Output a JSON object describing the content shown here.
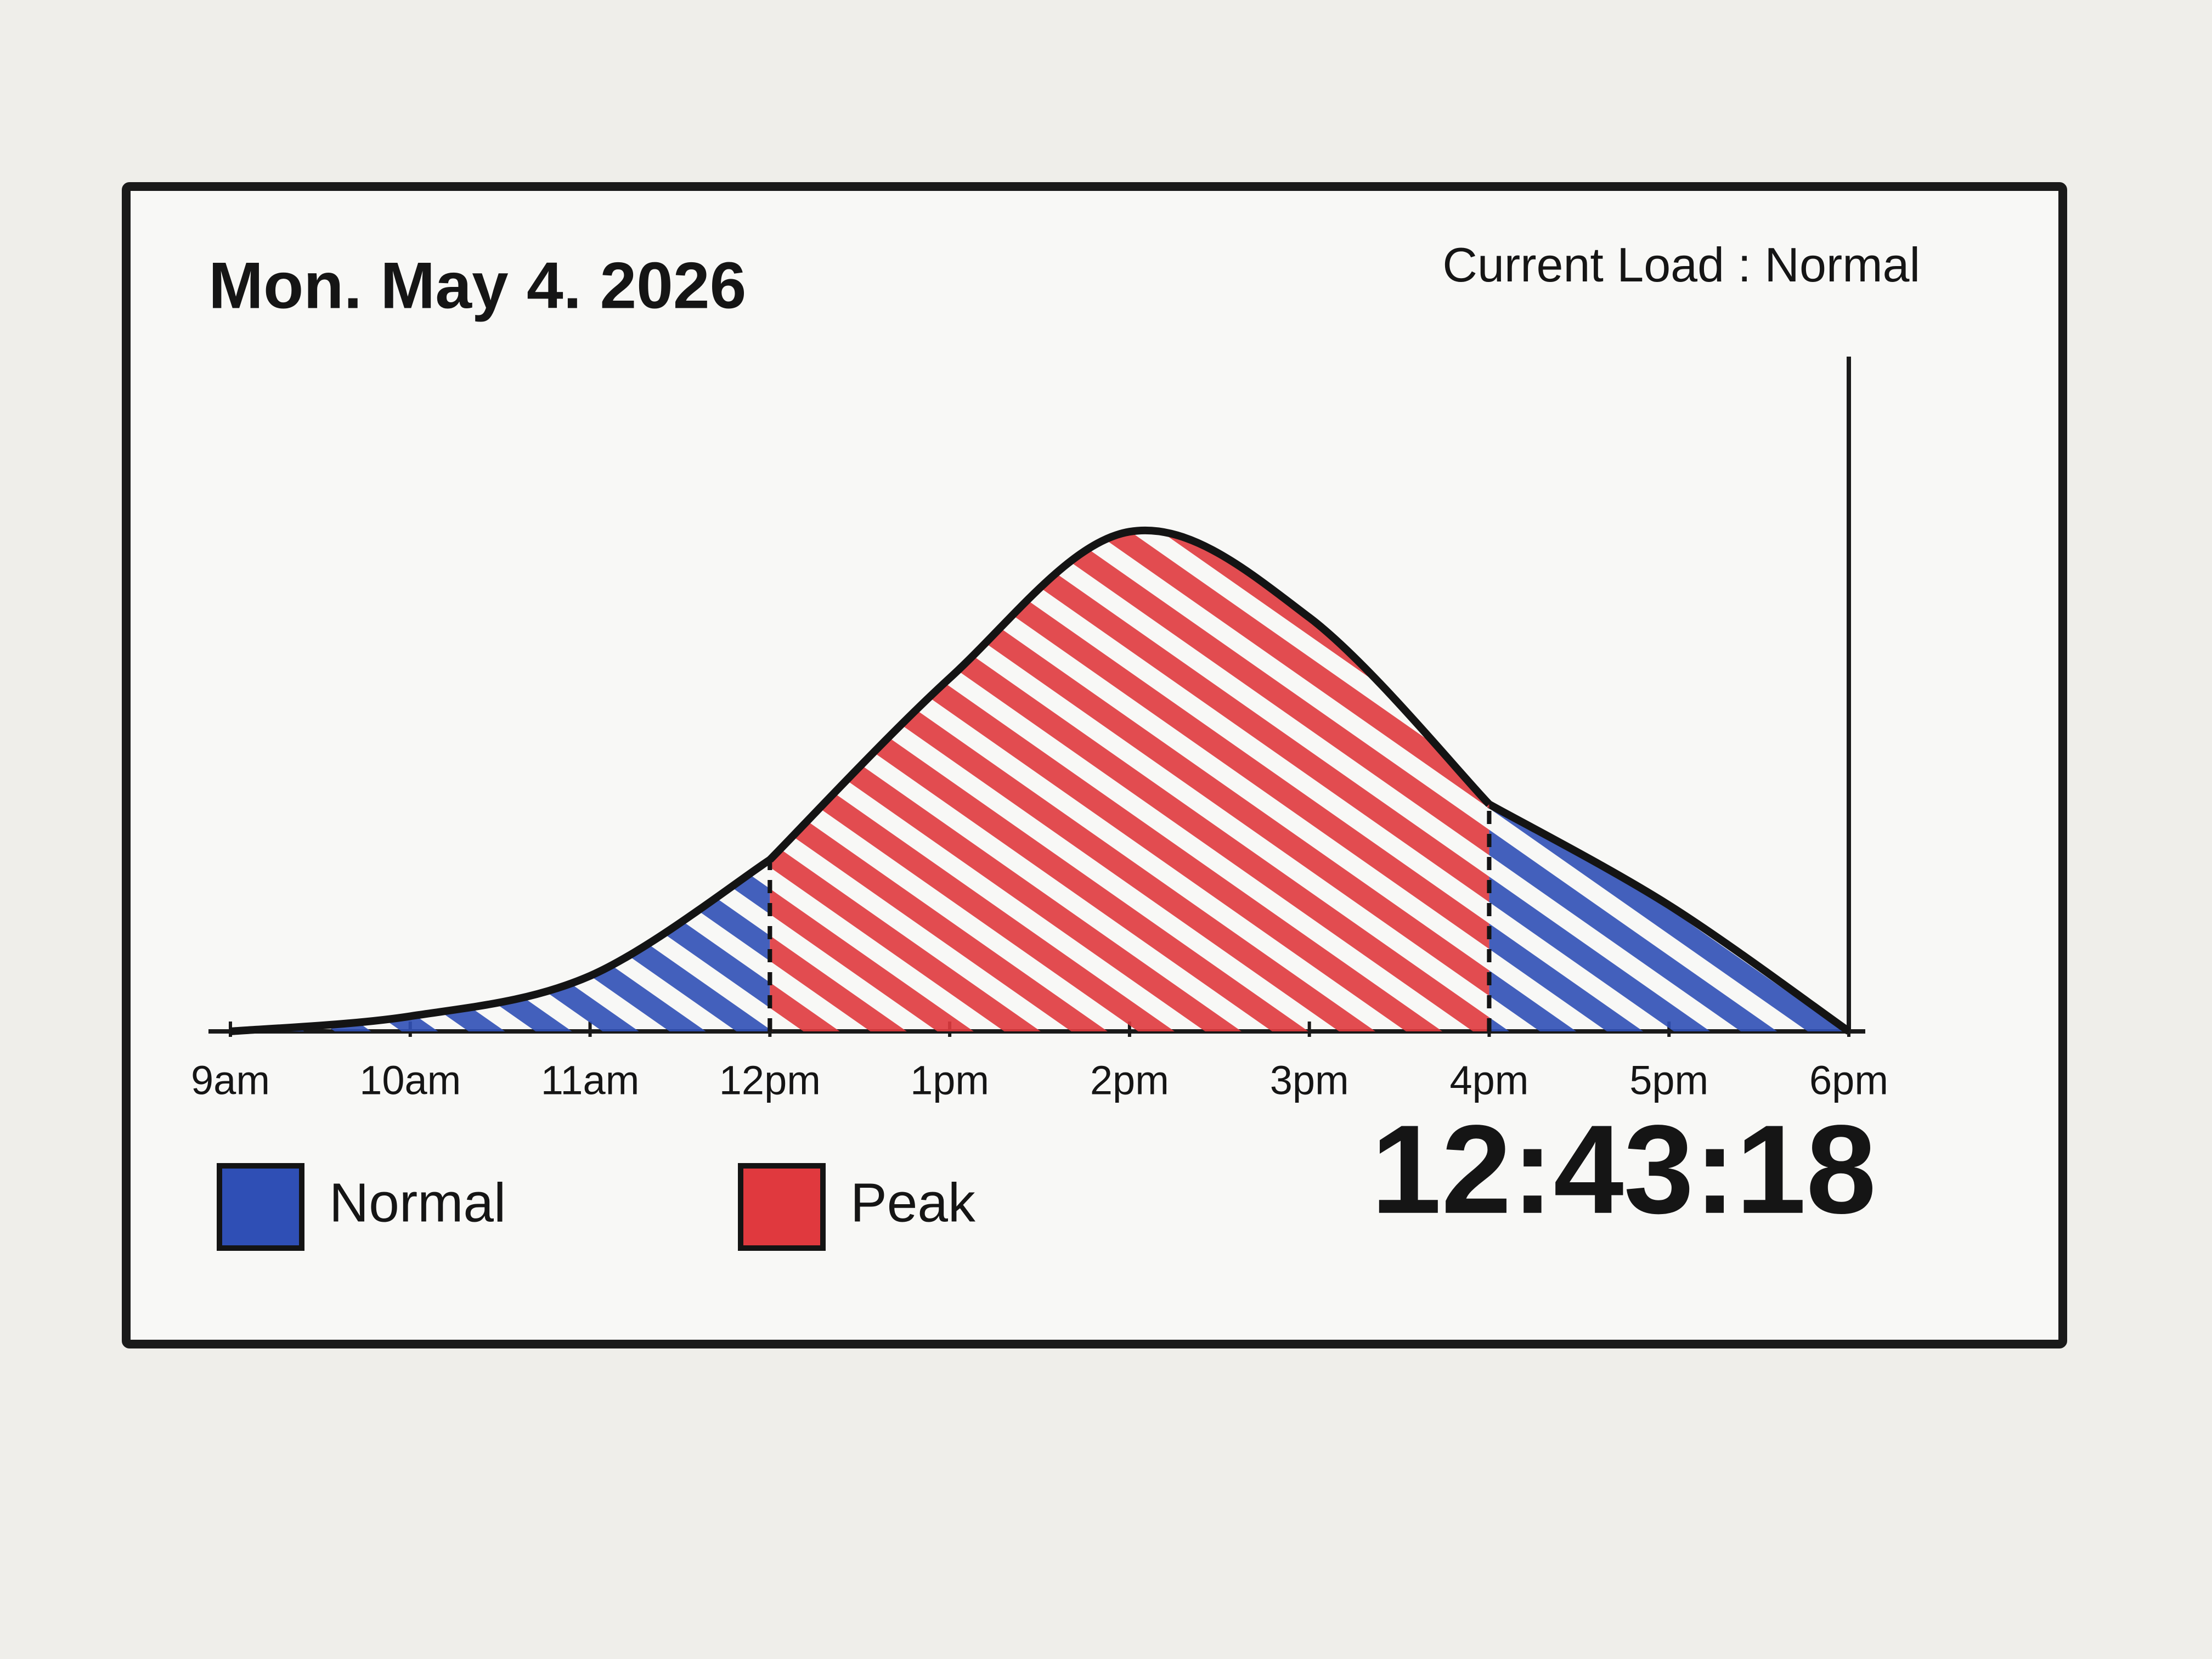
{
  "header": {
    "date": "Mon. May 4. 2026",
    "load_label": "Current Load :",
    "load_value": "Normal"
  },
  "clock": "12:43:18",
  "chart_data": {
    "type": "area",
    "categories": [
      "9am",
      "10am",
      "11am",
      "12pm",
      "1pm",
      "2pm",
      "3pm",
      "4pm",
      "5pm",
      "6pm"
    ],
    "series": [
      {
        "name": "Normal",
        "color": "#2f4fb5",
        "values": [
          0,
          3,
          11,
          34,
          null,
          null,
          null,
          45,
          25,
          0
        ]
      },
      {
        "name": "Peak",
        "color": "#e0393e",
        "values": [
          null,
          null,
          null,
          34,
          70,
          99,
          82,
          45,
          null,
          null
        ]
      }
    ],
    "ylim": [
      0,
      100
    ]
  }
}
